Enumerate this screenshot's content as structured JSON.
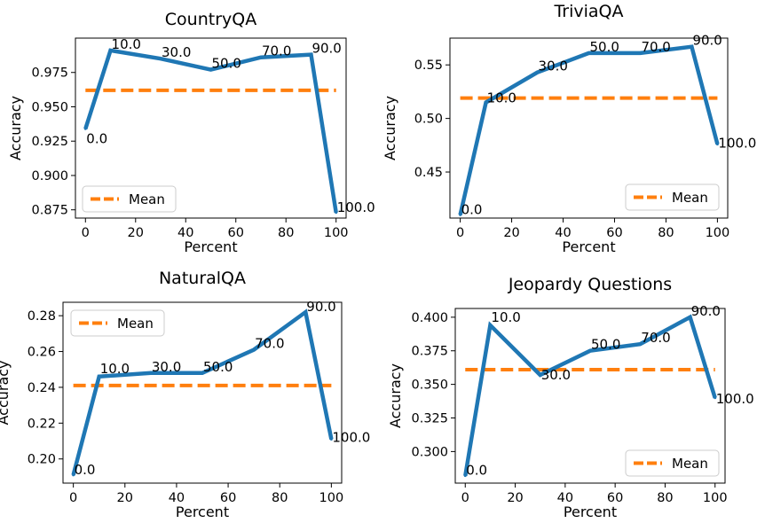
{
  "colors": {
    "series": "#1f77b4",
    "mean": "#ff7f0e"
  },
  "chart_data": [
    {
      "type": "line",
      "title": "CountryQA",
      "xlabel": "Percent",
      "ylabel": "Accuracy",
      "xlim": [
        -4,
        104
      ],
      "ylim": [
        0.869,
        1.0
      ],
      "xticks": [
        0,
        20,
        40,
        60,
        80,
        100
      ],
      "yticks": [
        0.875,
        0.9,
        0.925,
        0.95,
        0.975
      ],
      "ytick_labels": [
        "0.875",
        "0.900",
        "0.925",
        "0.950",
        "0.975"
      ],
      "x": [
        0,
        10,
        30,
        50,
        70,
        90,
        100
      ],
      "y": [
        0.934,
        0.991,
        0.985,
        0.977,
        0.986,
        0.988,
        0.873
      ],
      "point_labels": [
        "0.0",
        "10.0",
        "30.0",
        "50.0",
        "70.0",
        "90.0",
        "100.0"
      ],
      "mean": 0.962,
      "legend": {
        "label": "Mean",
        "position": "lower-left"
      }
    },
    {
      "type": "line",
      "title": "TriviaQA",
      "xlabel": "Percent",
      "ylabel": "Accuracy",
      "xlim": [
        -4,
        104
      ],
      "ylim": [
        0.407,
        0.575
      ],
      "xticks": [
        0,
        20,
        40,
        60,
        80,
        100
      ],
      "yticks": [
        0.45,
        0.5,
        0.55
      ],
      "ytick_labels": [
        "0.45",
        "0.50",
        "0.55"
      ],
      "x": [
        0,
        10,
        30,
        50,
        70,
        90,
        100
      ],
      "y": [
        0.41,
        0.515,
        0.543,
        0.561,
        0.561,
        0.567,
        0.476
      ],
      "point_labels": [
        "0.0",
        "10.0",
        "30.0",
        "50.0",
        "70.0",
        "90.0",
        "100.0"
      ],
      "mean": 0.519,
      "legend": {
        "label": "Mean",
        "position": "lower-right"
      }
    },
    {
      "type": "line",
      "title": "NaturalQA",
      "xlabel": "Percent",
      "ylabel": "Accuracy",
      "xlim": [
        -4,
        104
      ],
      "ylim": [
        0.1865,
        0.2875
      ],
      "xticks": [
        0,
        20,
        40,
        60,
        80,
        100
      ],
      "yticks": [
        0.2,
        0.22,
        0.24,
        0.26,
        0.28
      ],
      "ytick_labels": [
        "0.20",
        "0.22",
        "0.24",
        "0.26",
        "0.28"
      ],
      "x": [
        0,
        10,
        30,
        50,
        70,
        90,
        100
      ],
      "y": [
        0.191,
        0.246,
        0.248,
        0.248,
        0.261,
        0.282,
        0.211
      ],
      "point_labels": [
        "0.0",
        "10.0",
        "30.0",
        "50.0",
        "70.0",
        "90.0",
        "100.0"
      ],
      "mean": 0.241,
      "legend": {
        "label": "Mean",
        "position": "upper-left"
      }
    },
    {
      "type": "line",
      "title": "Jeopardy Questions",
      "xlabel": "Percent",
      "ylabel": "Accuracy",
      "xlim": [
        -4,
        104
      ],
      "ylim": [
        0.2765,
        0.4065
      ],
      "xticks": [
        0,
        20,
        40,
        60,
        80,
        100
      ],
      "yticks": [
        0.3,
        0.325,
        0.35,
        0.375,
        0.4
      ],
      "ytick_labels": [
        "0.300",
        "0.325",
        "0.350",
        "0.375",
        "0.400"
      ],
      "x": [
        0,
        10,
        30,
        50,
        70,
        90,
        100
      ],
      "y": [
        0.282,
        0.394,
        0.357,
        0.375,
        0.38,
        0.4,
        0.34
      ],
      "point_labels": [
        "0.0",
        "10.0",
        "30.0",
        "50.0",
        "70.0",
        "90.0",
        "100.0"
      ],
      "mean": 0.361,
      "legend": {
        "label": "Mean",
        "position": "lower-right"
      }
    }
  ]
}
